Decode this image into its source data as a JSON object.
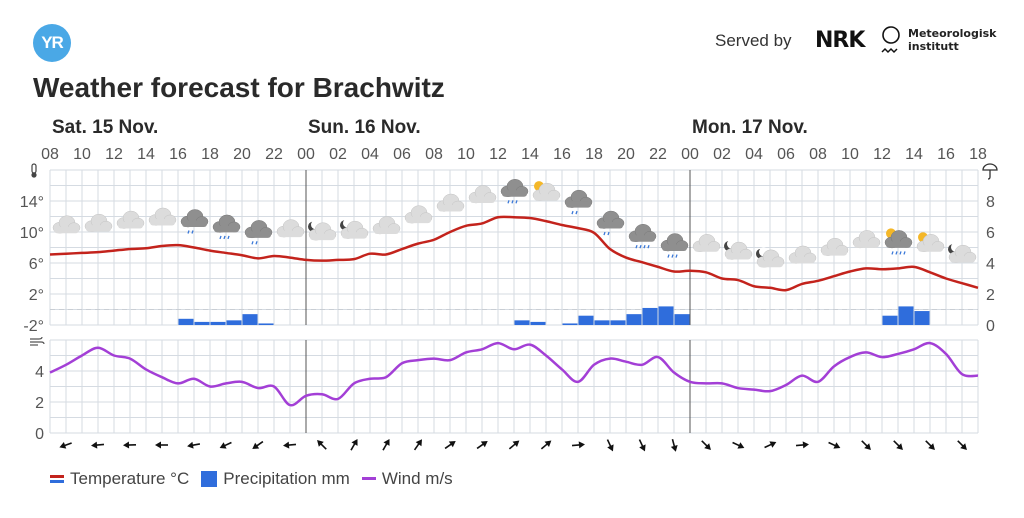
{
  "header": {
    "logo_text": "YR",
    "served_by": "Served by",
    "nrk_logo": "NRK",
    "met_name_line1": "Meteorologisk",
    "met_name_line2": "institutt"
  },
  "title": "Weather forecast for Brachwitz",
  "legend": {
    "temperature": "Temperature °C",
    "precipitation": "Precipitation mm",
    "wind": "Wind m/s"
  },
  "colors": {
    "temperature": "#c3231c",
    "precipitation": "#2f6ddc",
    "wind": "#a33fd6",
    "grid": "#d5dbe2",
    "logo": "#4aa8e6"
  },
  "chart_data": [
    {
      "type": "line",
      "title": "Temperature",
      "ylabel": "°C",
      "ylim": [
        -2,
        18
      ],
      "y_ticks": [
        "14°",
        "10°",
        "6°",
        "2°",
        "-2°"
      ],
      "y_tick_values": [
        14,
        10,
        6,
        2,
        -2
      ],
      "days": [
        {
          "label": "Sat. 15 Nov.",
          "start_hour_index": 0
        },
        {
          "label": "Sun. 16 Nov.",
          "start_hour_index": 16
        },
        {
          "label": "Mon. 17 Nov.",
          "start_hour_index": 40
        }
      ],
      "x_tick_labels": [
        "08",
        "10",
        "12",
        "14",
        "16",
        "18",
        "20",
        "22",
        "00",
        "02",
        "04",
        "06",
        "08",
        "10",
        "12",
        "14",
        "16",
        "18",
        "20",
        "22",
        "00",
        "02",
        "04",
        "06",
        "08",
        "10",
        "12",
        "14",
        "16",
        "18"
      ],
      "hours_total": 58,
      "values": [
        7.1,
        7.2,
        7.3,
        7.4,
        7.6,
        7.8,
        7.9,
        8.2,
        8.3,
        8.0,
        7.6,
        7.3,
        7.0,
        6.6,
        6.9,
        6.7,
        6.4,
        6.3,
        6.4,
        6.5,
        7.2,
        7.1,
        7.8,
        8.5,
        9.0,
        10.0,
        10.8,
        11.1,
        11.9,
        11.9,
        11.8,
        11.4,
        10.9,
        10.5,
        9.9,
        7.8,
        6.7,
        6.1,
        5.5,
        4.9,
        5.0,
        4.8,
        4.0,
        3.8,
        3.0,
        2.8,
        2.5,
        3.3,
        3.7,
        4.3,
        4.9,
        5.3,
        5.2,
        5.3,
        5.5,
        4.8,
        4.0,
        3.4,
        2.8
      ]
    },
    {
      "type": "bar",
      "title": "Precipitation",
      "ylabel": "mm",
      "ylim": [
        0,
        10
      ],
      "y_ticks": [
        "8",
        "6",
        "4",
        "2",
        "0"
      ],
      "y_tick_values": [
        8,
        6,
        4,
        2,
        0
      ],
      "reference_line": 1,
      "values": [
        0,
        0,
        0,
        0,
        0,
        0,
        0,
        0,
        0.4,
        0.2,
        0.2,
        0.3,
        0.7,
        0.1,
        0,
        0,
        0,
        0,
        0,
        0,
        0,
        0,
        0,
        0,
        0,
        0,
        0,
        0,
        0,
        0.3,
        0.2,
        0,
        0.1,
        0.6,
        0.3,
        0.3,
        0.7,
        1.1,
        1.2,
        0.7,
        0,
        0,
        0,
        0,
        0,
        0,
        0,
        0,
        0,
        0,
        0,
        0,
        0.6,
        1.2,
        0.9,
        0,
        0,
        0
      ]
    },
    {
      "type": "line",
      "title": "Wind",
      "ylabel": "m/s",
      "ylim": [
        0,
        6
      ],
      "y_ticks": [
        "4",
        "2",
        "0"
      ],
      "y_tick_values": [
        4,
        2,
        0
      ],
      "values": [
        3.9,
        4.4,
        5.0,
        5.5,
        5.0,
        4.8,
        4.1,
        3.6,
        3.2,
        3.5,
        3.0,
        3.2,
        3.3,
        2.9,
        3.0,
        1.8,
        2.4,
        2.5,
        2.2,
        3.2,
        3.5,
        3.6,
        4.5,
        4.7,
        4.8,
        4.7,
        5.2,
        5.4,
        5.8,
        5.4,
        5.7,
        5.0,
        4.1,
        3.3,
        4.4,
        4.8,
        4.6,
        4.4,
        4.9,
        3.9,
        3.3,
        3.2,
        3.2,
        2.9,
        2.8,
        2.7,
        3.1,
        3.7,
        3.3,
        4.3,
        4.9,
        5.2,
        4.9,
        5.1,
        5.4,
        5.8,
        5.1,
        3.8,
        3.7
      ],
      "arrow_hours": [
        1,
        3,
        5,
        7,
        9,
        11,
        13,
        15,
        17,
        19,
        21,
        23,
        25,
        27,
        29,
        31,
        33,
        35,
        37,
        39,
        41,
        43,
        45,
        47,
        49,
        51,
        53,
        55,
        57
      ],
      "arrow_direction_deg": [
        160,
        175,
        178,
        180,
        170,
        155,
        145,
        175,
        225,
        300,
        300,
        305,
        325,
        325,
        320,
        320,
        355,
        65,
        65,
        75,
        45,
        25,
        335,
        355,
        25,
        45,
        45,
        45,
        45
      ]
    }
  ],
  "weather_symbols": [
    {
      "hour": 0,
      "symbol": "cloudy"
    },
    {
      "hour": 2,
      "symbol": "cloudy"
    },
    {
      "hour": 4,
      "symbol": "cloudy"
    },
    {
      "hour": 6,
      "symbol": "cloudy"
    },
    {
      "hour": 8,
      "symbol": "lightrain"
    },
    {
      "hour": 10,
      "symbol": "rain"
    },
    {
      "hour": 12,
      "symbol": "lightrain"
    },
    {
      "hour": 14,
      "symbol": "cloudy"
    },
    {
      "hour": 16,
      "symbol": "partlycloudy-night"
    },
    {
      "hour": 18,
      "symbol": "partlycloudy-night"
    },
    {
      "hour": 20,
      "symbol": "cloudy"
    },
    {
      "hour": 22,
      "symbol": "cloudy"
    },
    {
      "hour": 24,
      "symbol": "cloudy"
    },
    {
      "hour": 26,
      "symbol": "cloudy"
    },
    {
      "hour": 28,
      "symbol": "rain"
    },
    {
      "hour": 30,
      "symbol": "partlycloudy-day"
    },
    {
      "hour": 32,
      "symbol": "lightrain"
    },
    {
      "hour": 34,
      "symbol": "lightrain"
    },
    {
      "hour": 36,
      "symbol": "heavyrain"
    },
    {
      "hour": 38,
      "symbol": "rain"
    },
    {
      "hour": 40,
      "symbol": "cloudy"
    },
    {
      "hour": 42,
      "symbol": "partlycloudy-night"
    },
    {
      "hour": 44,
      "symbol": "partlycloudy-night"
    },
    {
      "hour": 46,
      "symbol": "cloudy"
    },
    {
      "hour": 48,
      "symbol": "cloudy"
    },
    {
      "hour": 50,
      "symbol": "cloudy"
    },
    {
      "hour": 52,
      "symbol": "rainshowers-day"
    },
    {
      "hour": 54,
      "symbol": "partlycloudy-day"
    },
    {
      "hour": 56,
      "symbol": "partlycloudy-night"
    }
  ]
}
